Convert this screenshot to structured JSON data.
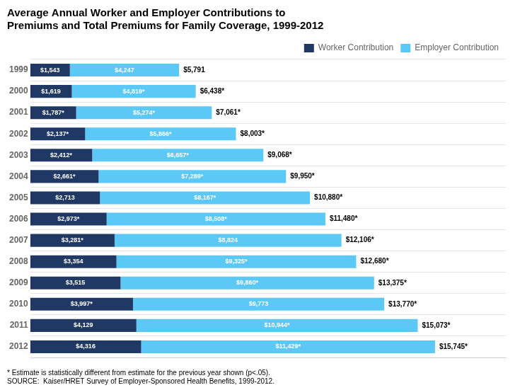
{
  "chart_data": {
    "type": "bar",
    "orientation": "horizontal",
    "stacked": true,
    "title": "Average Annual Worker and Employer Contributions to\nPremiums and Total Premiums for Family Coverage, 1999-2012",
    "footnote": "* Estimate is statistically different from estimate for the previous year shown (p<.05).",
    "source": "SOURCE:  Kaiser/HRET Survey of Employer-Sponsored Health Benefits, 1999-2012.",
    "categories": [
      "1999",
      "2000",
      "2001",
      "2002",
      "2003",
      "2004",
      "2005",
      "2006",
      "2007",
      "2008",
      "2009",
      "2010",
      "2011",
      "2012"
    ],
    "series": [
      {
        "name": "Worker Contribution",
        "color": "#1F3864",
        "values": [
          1543,
          1619,
          1787,
          2137,
          2412,
          2661,
          2713,
          2973,
          3281,
          3354,
          3515,
          3997,
          4129,
          4316
        ],
        "value_labels": [
          "$1,543",
          "$1,619",
          "$1,787*",
          "$2,137*",
          "$2,412*",
          "$2,661*",
          "$2,713",
          "$2,973*",
          "$3,281*",
          "$3,354",
          "$3,515",
          "$3,997*",
          "$4,129",
          "$4,316"
        ]
      },
      {
        "name": "Employer Contribution",
        "color": "#5BC8F5",
        "values": [
          4247,
          4819,
          5274,
          5866,
          6657,
          7289,
          8167,
          8508,
          8824,
          9325,
          9860,
          9773,
          10944,
          11429
        ],
        "value_labels": [
          "$4,247",
          "$4,819*",
          "$5,274*",
          "$5,866*",
          "$6,657*",
          "$7,289*",
          "$8,167*",
          "$8,508*",
          "$8,824",
          "$9,325*",
          "$9,860*",
          "$9,773",
          "$10,944*",
          "$11,429*"
        ]
      }
    ],
    "totals": [
      5791,
      6438,
      7061,
      8003,
      9068,
      9950,
      10880,
      11480,
      12106,
      12680,
      13375,
      13770,
      15073,
      15745
    ],
    "total_labels": [
      "$5,791",
      "$6,438*",
      "$7,061*",
      "$8,003*",
      "$9,068*",
      "$9,950*",
      "$10,880*",
      "$11,480*",
      "$12,106*",
      "$12,680*",
      "$13,375*",
      "$13,770*",
      "$15,073*",
      "$15,745*"
    ],
    "data_labels": true,
    "xlim": [
      0,
      18500
    ],
    "tick_labels": "y",
    "grid": true,
    "legend": "upper right"
  }
}
